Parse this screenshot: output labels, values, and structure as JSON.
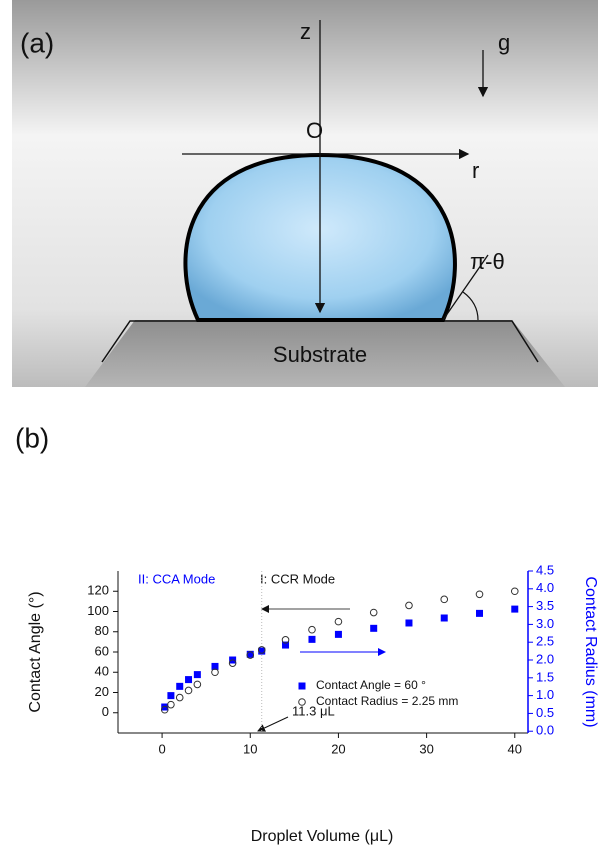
{
  "panel_a": {
    "label": "(a)",
    "axis_z": "z",
    "gravity": "g",
    "origin": "O",
    "axis_r": "r",
    "angle": "π-θ",
    "substrate": "Substrate"
  },
  "chart_data": {
    "type": "scatter",
    "panel_label": "(b)",
    "x_label": "Droplet Volume (μL)",
    "y_label": "Contact Angle (°)",
    "y2_label": "Contact Radius (mm)",
    "annotations": [
      "II: CCA Mode",
      "I: CCR Mode",
      "11.3 μL"
    ],
    "vline_x": 11.3,
    "x": [
      0.3,
      1,
      2,
      3,
      4,
      6,
      8,
      10,
      11.3,
      14,
      17,
      20,
      24,
      28,
      32,
      36,
      40
    ],
    "series": [
      {
        "name": "Contact Angle = 60 °",
        "color": "#0000ff",
        "marker": "square",
        "axis": "y2",
        "values": [
          0.68,
          1.0,
          1.26,
          1.45,
          1.59,
          1.82,
          2.0,
          2.16,
          2.25,
          2.42,
          2.58,
          2.72,
          2.89,
          3.04,
          3.18,
          3.31,
          3.43
        ]
      },
      {
        "name": "Contact Radius = 2.25 mm",
        "color": "#333333",
        "marker": "circle",
        "axis": "y",
        "values": [
          3,
          8,
          15,
          22,
          28,
          40,
          49,
          57,
          62,
          72,
          82,
          90,
          99,
          106,
          112,
          117,
          120
        ]
      }
    ],
    "xlim": [
      -5,
      41.5
    ],
    "ylim": [
      -20,
      140
    ],
    "y2lim": [
      -0.05,
      4.5
    ],
    "xticks": [
      0,
      10,
      20,
      30,
      40
    ],
    "yticks": [
      0,
      20,
      40,
      60,
      80,
      100,
      120
    ],
    "y2ticks": [
      {
        "value": 0,
        "label": "0.0"
      },
      0.5,
      {
        "value": 1,
        "label": "1.0"
      },
      1.5,
      {
        "value": 2,
        "label": "2.0"
      },
      2.5,
      {
        "value": 3,
        "label": "3.0"
      },
      3.5,
      {
        "value": 4,
        "label": "4.0"
      },
      4.5
    ],
    "legend": "lower right",
    "y2_color": "#0000ff"
  }
}
